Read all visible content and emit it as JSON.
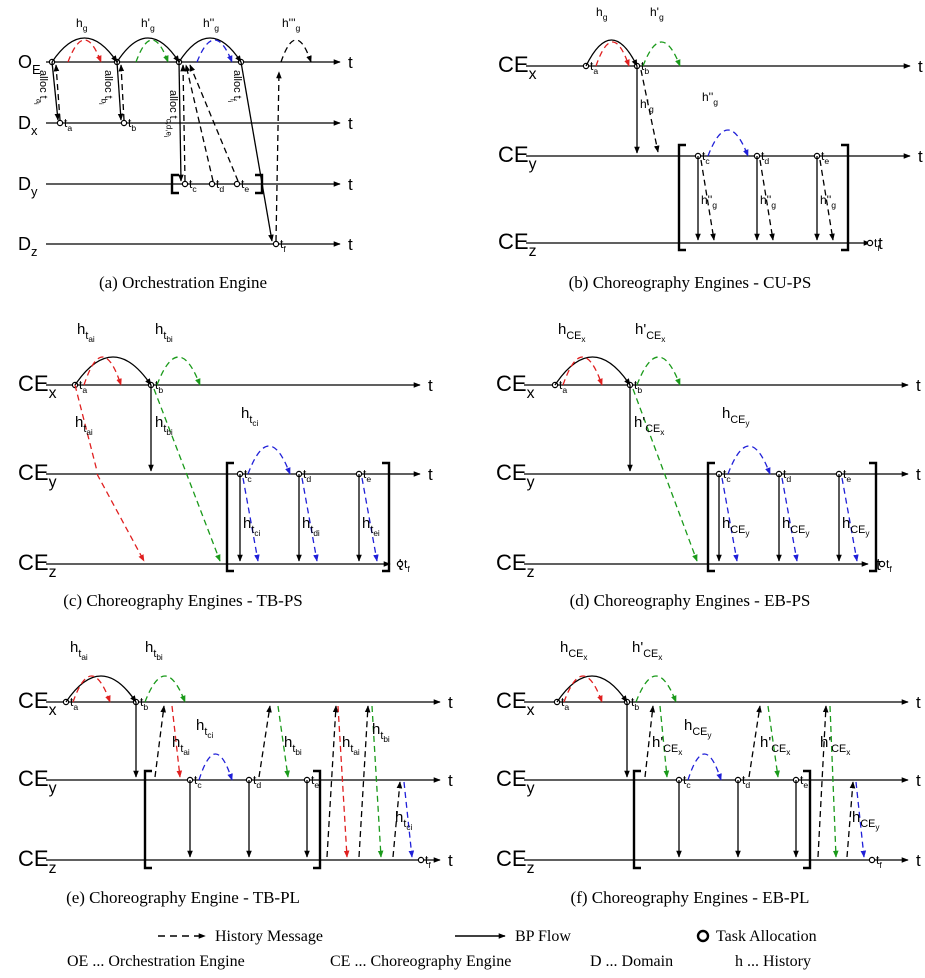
{
  "colors": {
    "red": "#e02020",
    "green": "#1a9a1a",
    "blue": "#2020d8",
    "black": "#000000"
  },
  "panels": {
    "a": {
      "caption": "(a)  Orchestration Engine",
      "lanes": [
        "OE",
        "Dx",
        "Dy",
        "Dz"
      ],
      "axis": "t",
      "history": [
        "h",
        "h'",
        "h''",
        "h'''"
      ],
      "allocs": [
        "alloc t",
        "alloc t",
        "alloc t",
        "alloc t"
      ],
      "alloc_sub": [
        "ai",
        "bi",
        "ci,di,ei",
        "fi"
      ],
      "tasks": [
        "t",
        "t",
        "t",
        "t",
        "t",
        "t"
      ],
      "task_sub": [
        "ai",
        "bi",
        "ci",
        "di",
        "ei",
        "fi"
      ]
    },
    "b": {
      "caption": "(b)  Choreography Engines - CU-PS",
      "lanes": [
        "CEx",
        "CEy",
        "CEz"
      ],
      "axis": "t",
      "history": [
        "h",
        "h'",
        "h''",
        "h'",
        "h''",
        "h''",
        "h''"
      ]
    },
    "c": {
      "caption": "(c)  Choreography Engines - TB-PS",
      "lanes": [
        "CEx",
        "CEy",
        "CEz"
      ],
      "axis": "t",
      "history": [
        "h",
        "h",
        "h",
        "h",
        "h",
        "h",
        "h",
        "h"
      ],
      "history_sub": [
        "tai",
        "tbi",
        "tai",
        "tbi",
        "tci",
        "tci",
        "tdi",
        "tei"
      ]
    },
    "d": {
      "caption": "(d)  Choreography Engines - EB-PS",
      "lanes": [
        "CEx",
        "CEy",
        "CEz"
      ],
      "axis": "t",
      "history": [
        "h",
        "h'",
        "h'",
        "h",
        "h",
        "h",
        "h"
      ],
      "history_sub": [
        "CEx",
        "CEx",
        "CEx",
        "CEy",
        "CEy",
        "CEy",
        "CEy"
      ]
    },
    "e": {
      "caption": "(e)  Choreography Engine - TB-PL",
      "lanes": [
        "CEx",
        "CEy",
        "CEz"
      ],
      "axis": "t",
      "history": [
        "h",
        "h",
        "h",
        "h",
        "h",
        "h",
        "h",
        "h"
      ],
      "history_sub": [
        "tai",
        "tbi",
        "tai",
        "tci",
        "tbi",
        "tai",
        "tbi",
        "tci"
      ]
    },
    "f": {
      "caption": "(f)  Choreography Engines - EB-PL",
      "lanes": [
        "CEx",
        "CEy",
        "CEz"
      ],
      "axis": "t",
      "history": [
        "h",
        "h'",
        "h'",
        "h",
        "h'",
        "h'",
        "h"
      ],
      "history_sub": [
        "CEx",
        "CEx",
        "CEx",
        "CEy",
        "CEx",
        "CEx",
        "CEy"
      ]
    }
  },
  "legend": {
    "history_message": "History Message",
    "bp_flow": "BP Flow",
    "task_allocation": "Task Allocation",
    "oe": "OE ... Orchestration Engine",
    "ce": "CE ... Choreography Engine",
    "d": "D ... Domain",
    "h": "h ... History"
  }
}
